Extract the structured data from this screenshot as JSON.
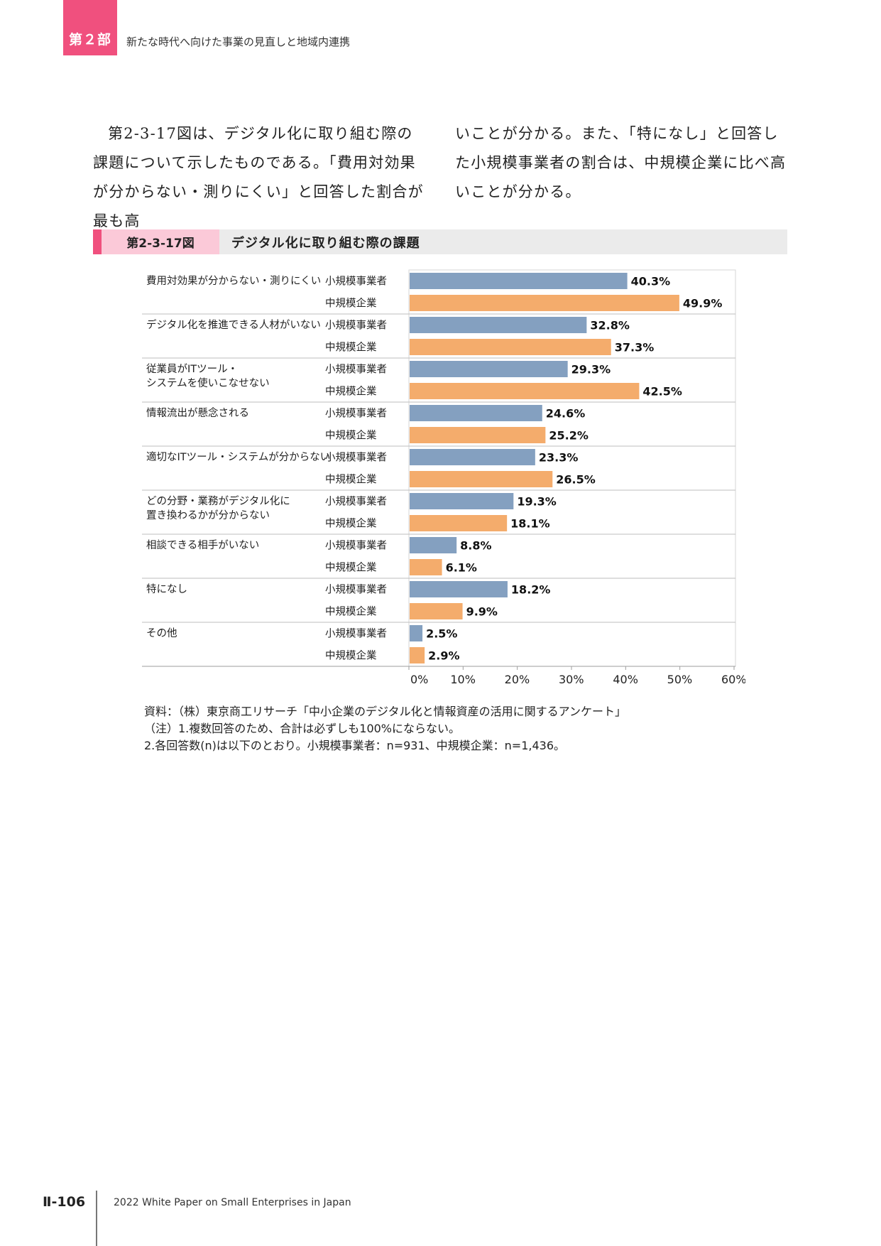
{
  "header": {
    "part": "第２部",
    "title": "新たな時代へ向けた事業の見直しと地域内連携"
  },
  "body": {
    "left": "第2-3-17図は、デジタル化に取り組む際の課題について示したものである。「費用対効果が分からない・測りにくい」と回答した割合が最も高",
    "right": "いことが分かる。また、「特になし」と回答した小規模事業者の割合は、中規模企業に比べ高いことが分かる。"
  },
  "figure": {
    "number": "第2-3-17図",
    "title": "デジタル化に取り組む際の課題"
  },
  "colors": {
    "small": "#84a0c0",
    "medium": "#f4ac6c",
    "accent": "#f0507e",
    "accent_light": "#fbc9d8"
  },
  "chart_data": {
    "type": "bar",
    "orientation": "horizontal",
    "categories": [
      [
        "費用対効果が分からない・測りにくい"
      ],
      [
        "デジタル化を推進できる人材がいない"
      ],
      [
        "従業員がITツール・",
        "システムを使いこなせない"
      ],
      [
        "情報流出が懸念される"
      ],
      [
        "適切なITツール・システムが分からない"
      ],
      [
        "どの分野・業務がデジタル化に",
        "置き換わるかが分からない"
      ],
      [
        "相談できる相手がいない"
      ],
      [
        "特になし"
      ],
      [
        "その他"
      ]
    ],
    "series": [
      {
        "name": "小規模事業者",
        "values": [
          40.3,
          32.8,
          29.3,
          24.6,
          23.3,
          19.3,
          8.8,
          18.2,
          2.5
        ],
        "labels": [
          "40.3%",
          "32.8%",
          "29.3%",
          "24.6%",
          "23.3%",
          "19.3%",
          "8.8%",
          "18.2%",
          "2.5%"
        ]
      },
      {
        "name": "中規模企業",
        "values": [
          49.9,
          37.3,
          42.5,
          25.2,
          26.5,
          18.1,
          6.1,
          9.9,
          2.9
        ],
        "labels": [
          "49.9%",
          "37.3%",
          "42.5%",
          "25.2%",
          "26.5%",
          "18.1%",
          "6.1%",
          "9.9%",
          "2.9%"
        ]
      }
    ],
    "xlim": [
      0,
      60
    ],
    "xticks": [
      0,
      10,
      20,
      30,
      40,
      50,
      60
    ],
    "xtick_labels": [
      "0%",
      "10%",
      "20%",
      "30%",
      "40%",
      "50%",
      "60%"
    ],
    "legend": "none"
  },
  "notes": {
    "source": "資料：（株）東京商工リサーチ「中小企業のデジタル化と情報資産の活用に関するアンケート」",
    "note1": "（注）1.複数回答のため、合計は必ずしも100%にならない。",
    "note2": "2.各回答数(n)は以下のとおり。小規模事業者：n=931、中規模企業：n=1,436。"
  },
  "footer": {
    "page": "Ⅱ-106",
    "title": "2022 White Paper on Small Enterprises in Japan"
  }
}
